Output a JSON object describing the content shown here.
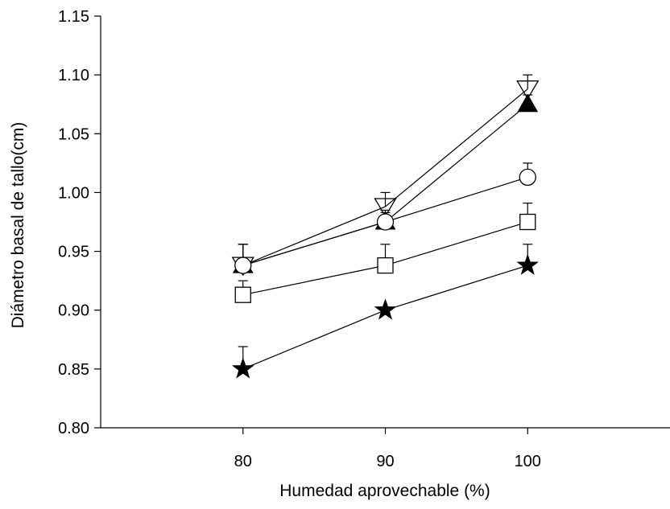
{
  "chart_data": {
    "type": "line",
    "xlabel": "Humedad aprovechable (%)",
    "ylabel": "Diámetro basal de tallo(cm)",
    "xlim": [
      70,
      110
    ],
    "ylim": [
      0.8,
      1.15
    ],
    "x": [
      80,
      90,
      100
    ],
    "xticks": [
      "80",
      "90",
      "100"
    ],
    "yticks": [
      "0.80",
      "0.85",
      "0.90",
      "0.95",
      "1.00",
      "1.05",
      "1.10",
      "1.15"
    ],
    "grid": false,
    "series": [
      {
        "marker": "triangle-down-open",
        "values": [
          0.938,
          0.988,
          1.088
        ],
        "errors": [
          0.018,
          0.012,
          0.012
        ]
      },
      {
        "marker": "triangle-up-filled",
        "values": [
          0.938,
          0.975,
          1.075
        ],
        "errors": [
          0.018,
          0.008,
          0.008
        ]
      },
      {
        "marker": "circle-open",
        "values": [
          0.938,
          0.975,
          1.013
        ],
        "errors": [
          0.018,
          0.01,
          0.012
        ]
      },
      {
        "marker": "square-open",
        "values": [
          0.913,
          0.938,
          0.975
        ],
        "errors": [
          0.012,
          0.018,
          0.016
        ]
      },
      {
        "marker": "star-filled",
        "values": [
          0.85,
          0.9,
          0.938
        ],
        "errors": [
          0.019,
          0.0,
          0.018
        ]
      }
    ]
  }
}
